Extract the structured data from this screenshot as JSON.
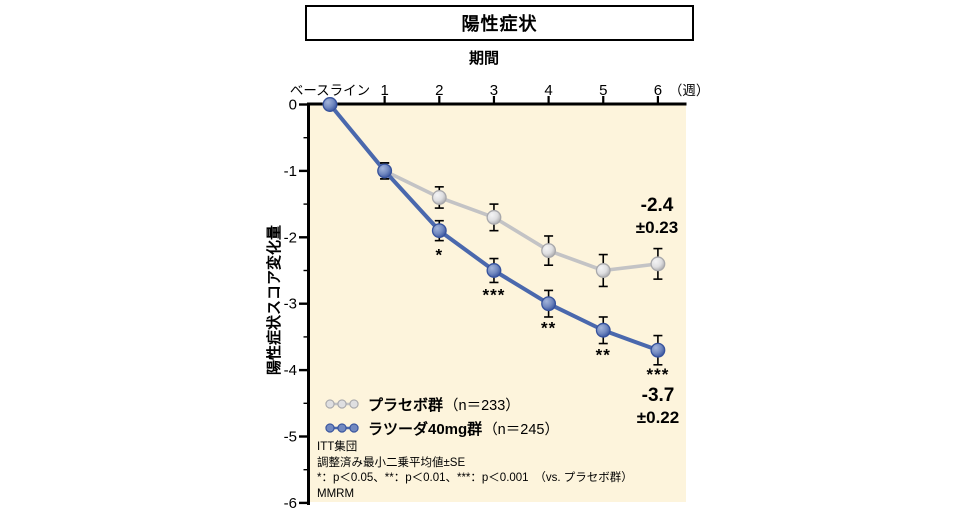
{
  "title": "陽性症状",
  "chart_data": {
    "type": "line",
    "title": "陽性症状",
    "x_axis_title": "期間",
    "x": [
      "ベースライン",
      "1",
      "2",
      "3",
      "4",
      "5",
      "6"
    ],
    "x_unit_label": "（週）",
    "y_axis_title": "陽性症状スコア変化量",
    "ylim": [
      -6,
      0
    ],
    "y_ticks": [
      0,
      -1,
      -2,
      -3,
      -4,
      -5,
      -6
    ],
    "y_minor_tick_step": 0.5,
    "grid": false,
    "legend_position": "inside-bottom-left",
    "plot_background": "#fdf4dc",
    "axis_color": "#000000",
    "error_bar_color": "#000000",
    "series": [
      {
        "name": "プラセボ群",
        "n": 233,
        "color": "#c3c3c5",
        "marker_fill": "#dfdfe1",
        "marker_highlight": "#f4f4f5",
        "marker_edge": "#a8a8ab",
        "values": [
          0,
          -1.0,
          -1.4,
          -1.7,
          -2.2,
          -2.5,
          -2.4
        ],
        "se": [
          null,
          0.12,
          0.16,
          0.2,
          0.22,
          0.24,
          0.23
        ],
        "end_label": {
          "value": "-2.4",
          "se": "±0.23"
        }
      },
      {
        "name": "ラツーダ40mg群",
        "n": 245,
        "color": "#4a68ad",
        "marker_fill": "#7289c0",
        "marker_highlight": "#a3b4da",
        "marker_edge": "#36529d",
        "values": [
          0,
          -1.0,
          -1.9,
          -2.5,
          -3.0,
          -3.4,
          -3.7
        ],
        "se": [
          null,
          0.12,
          0.15,
          0.18,
          0.2,
          0.2,
          0.22
        ],
        "significance": [
          "",
          "",
          "*",
          "***",
          "**",
          "**",
          "***"
        ],
        "end_label": {
          "value": "-3.7",
          "se": "±0.22"
        }
      }
    ]
  },
  "legend": [
    {
      "label": "プラセボ群",
      "count": "（n＝233）"
    },
    {
      "label": "ラツーダ40mg群",
      "count": "（n＝245）"
    }
  ],
  "footnotes": [
    "ITT集団",
    "調整済み最小二乗平均値±SE",
    "*：p＜0.05、**：p＜0.01、***：p＜0.001　（vs. プラセボ群）",
    "MMRM"
  ]
}
